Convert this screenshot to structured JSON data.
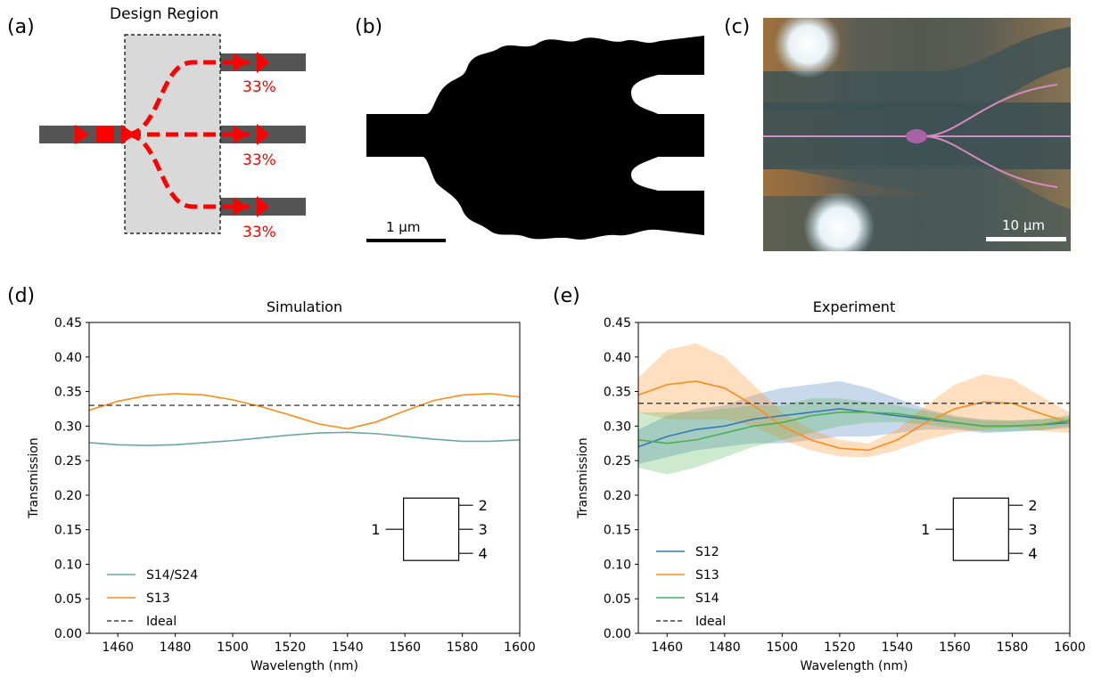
{
  "panels": {
    "a": {
      "label": "(a)",
      "region_title": "Design Region",
      "percentages": [
        "33%",
        "33%",
        "33%"
      ]
    },
    "b": {
      "label": "(b)",
      "scale_bar": "1 μm"
    },
    "c": {
      "label": "(c)",
      "scale_bar": "10 μm"
    },
    "d": {
      "label": "(d)"
    },
    "e": {
      "label": "(e)"
    }
  },
  "chart_data": [
    {
      "type": "line",
      "title": "Simulation",
      "xlabel": "Wavelength (nm)",
      "ylabel": "Transmission",
      "xlim": [
        1450,
        1600
      ],
      "ylim": [
        0.0,
        0.45
      ],
      "x_ticks": [
        "1460",
        "1480",
        "1500",
        "1520",
        "1540",
        "1560",
        "1580",
        "1600"
      ],
      "y_ticks": [
        "0.00",
        "0.05",
        "0.10",
        "0.15",
        "0.20",
        "0.25",
        "0.30",
        "0.35",
        "0.40",
        "0.45"
      ],
      "legend_position": "lower-left",
      "series": [
        {
          "name": "S14/S24",
          "color": "#6aa6a4",
          "x": [
            1450,
            1460,
            1470,
            1480,
            1490,
            1500,
            1510,
            1520,
            1530,
            1540,
            1550,
            1560,
            1570,
            1580,
            1590,
            1600
          ],
          "y": [
            0.276,
            0.273,
            0.272,
            0.273,
            0.276,
            0.279,
            0.283,
            0.287,
            0.29,
            0.291,
            0.289,
            0.285,
            0.281,
            0.278,
            0.278,
            0.28
          ]
        },
        {
          "name": "S13",
          "color": "#ff8c1a",
          "x": [
            1450,
            1460,
            1470,
            1480,
            1490,
            1500,
            1510,
            1520,
            1530,
            1540,
            1550,
            1560,
            1570,
            1580,
            1590,
            1600
          ],
          "y": [
            0.323,
            0.336,
            0.344,
            0.347,
            0.345,
            0.338,
            0.328,
            0.316,
            0.303,
            0.296,
            0.306,
            0.322,
            0.337,
            0.345,
            0.347,
            0.342
          ]
        },
        {
          "name": "Ideal",
          "color": "#444444",
          "dashed": true,
          "x": [
            1450,
            1600
          ],
          "y": [
            0.33,
            0.33
          ]
        }
      ],
      "inset": {
        "input_port": "1",
        "output_ports": [
          "2",
          "3",
          "4"
        ]
      }
    },
    {
      "type": "line",
      "title": "Experiment",
      "xlabel": "Wavelength (nm)",
      "ylabel": "Transmission",
      "xlim": [
        1450,
        1600
      ],
      "ylim": [
        0.0,
        0.45
      ],
      "x_ticks": [
        "1460",
        "1480",
        "1500",
        "1520",
        "1540",
        "1560",
        "1580",
        "1600"
      ],
      "y_ticks": [
        "0.00",
        "0.05",
        "0.10",
        "0.15",
        "0.20",
        "0.25",
        "0.30",
        "0.35",
        "0.40",
        "0.45"
      ],
      "legend_position": "lower-left",
      "series": [
        {
          "name": "S12",
          "color": "#3a78b8",
          "x": [
            1450,
            1460,
            1470,
            1480,
            1490,
            1500,
            1510,
            1520,
            1530,
            1540,
            1550,
            1560,
            1570,
            1580,
            1590,
            1600
          ],
          "y": [
            0.27,
            0.285,
            0.295,
            0.3,
            0.31,
            0.315,
            0.32,
            0.325,
            0.32,
            0.315,
            0.31,
            0.305,
            0.3,
            0.3,
            0.302,
            0.305
          ],
          "band": [
            0.025,
            0.03,
            0.03,
            0.03,
            0.035,
            0.04,
            0.04,
            0.04,
            0.035,
            0.025,
            0.015,
            0.01,
            0.01,
            0.008,
            0.008,
            0.008
          ]
        },
        {
          "name": "S13",
          "color": "#ff8c1a",
          "x": [
            1450,
            1460,
            1470,
            1480,
            1490,
            1500,
            1510,
            1520,
            1530,
            1540,
            1550,
            1560,
            1570,
            1580,
            1590,
            1600
          ],
          "y": [
            0.345,
            0.36,
            0.365,
            0.355,
            0.33,
            0.3,
            0.28,
            0.268,
            0.265,
            0.28,
            0.305,
            0.325,
            0.335,
            0.333,
            0.318,
            0.305
          ],
          "band": [
            0.025,
            0.05,
            0.055,
            0.045,
            0.03,
            0.02,
            0.015,
            0.012,
            0.01,
            0.015,
            0.025,
            0.035,
            0.04,
            0.035,
            0.025,
            0.015
          ]
        },
        {
          "name": "S14",
          "color": "#4caf50",
          "x": [
            1450,
            1460,
            1470,
            1480,
            1490,
            1500,
            1510,
            1520,
            1530,
            1540,
            1550,
            1560,
            1570,
            1580,
            1590,
            1600
          ],
          "y": [
            0.28,
            0.275,
            0.28,
            0.29,
            0.3,
            0.305,
            0.315,
            0.32,
            0.32,
            0.318,
            0.312,
            0.305,
            0.3,
            0.3,
            0.302,
            0.308
          ],
          "band": [
            0.04,
            0.045,
            0.04,
            0.035,
            0.03,
            0.025,
            0.025,
            0.02,
            0.015,
            0.012,
            0.01,
            0.008,
            0.008,
            0.008,
            0.008,
            0.008
          ]
        },
        {
          "name": "Ideal",
          "color": "#444444",
          "dashed": true,
          "x": [
            1450,
            1600
          ],
          "y": [
            0.333,
            0.333
          ]
        }
      ],
      "inset": {
        "input_port": "1",
        "output_ports": [
          "2",
          "3",
          "4"
        ]
      }
    }
  ]
}
